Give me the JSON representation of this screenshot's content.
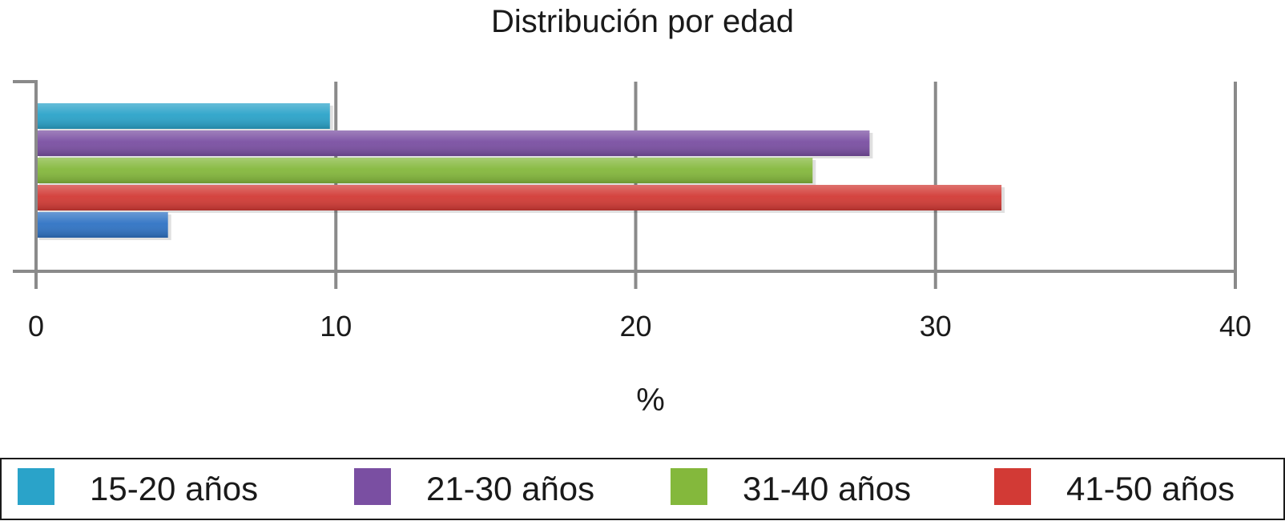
{
  "chart_data": {
    "type": "bar",
    "orientation": "horizontal",
    "title": "Distribución por edad",
    "xlabel": "%",
    "ylabel": "",
    "xlim": [
      0,
      40
    ],
    "xticks": [
      "0",
      "10",
      "20",
      "30",
      "40"
    ],
    "grid": true,
    "legend_position": "bottom",
    "series": [
      {
        "name": "15-20 años",
        "value": 9.8,
        "color": "#2aa3c9"
      },
      {
        "name": "21-30 años",
        "value": 27.8,
        "color": "#7a4fa2"
      },
      {
        "name": "31-40 años",
        "value": 25.9,
        "color": "#84b83c"
      },
      {
        "name": "41-50 años",
        "value": 32.2,
        "color": "#d23a35"
      },
      {
        "value": 4.4,
        "color": "#2f73c4"
      }
    ],
    "legend": [
      {
        "label": "15-20 años",
        "color": "#2aa3c9"
      },
      {
        "label": "21-30 años",
        "color": "#7a4fa2"
      },
      {
        "label": "31-40 años",
        "color": "#84b83c"
      },
      {
        "label": "41-50 años",
        "color": "#d23a35"
      }
    ]
  }
}
